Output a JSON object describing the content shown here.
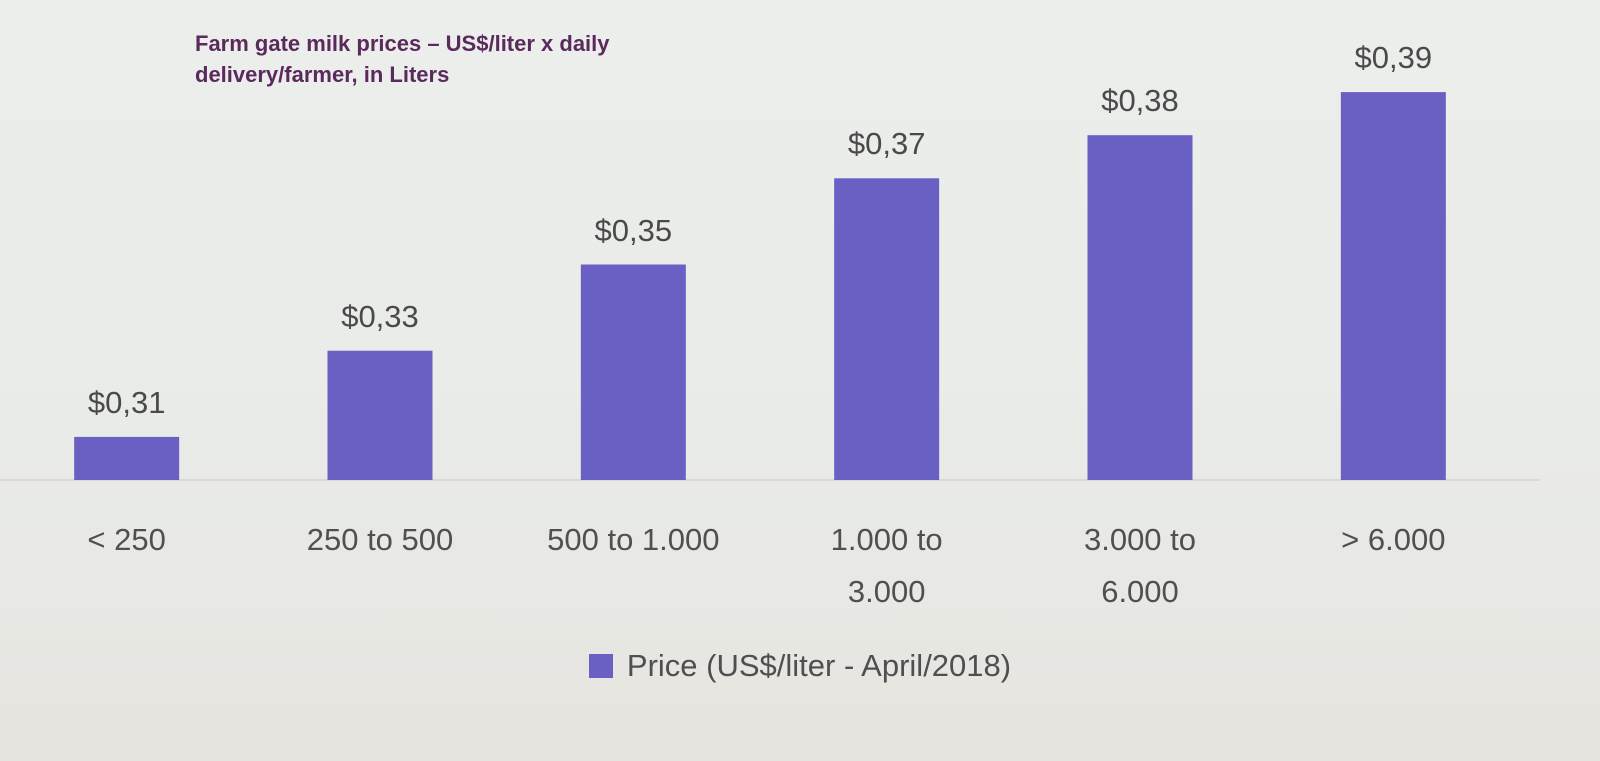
{
  "chart_data": {
    "type": "bar",
    "title": "Farm gate milk prices – US$/liter x daily delivery/farmer, in Liters",
    "categories": [
      "< 250",
      "250 to 500",
      "500 to 1.000",
      "1.000 to 3.000",
      "3.000 to 6.000",
      "> 6.000"
    ],
    "series": [
      {
        "name": "Price (US$/liter - April/2018)",
        "color": "#6a5fc3",
        "values": [
          0.31,
          0.33,
          0.35,
          0.37,
          0.38,
          0.39
        ],
        "value_labels": [
          "$0,31",
          "$0,33",
          "$0,35",
          "$0,37",
          "$0,38",
          "$0,39"
        ]
      }
    ],
    "ylim": [
      0.3,
      0.4
    ],
    "legend": "bottom"
  }
}
